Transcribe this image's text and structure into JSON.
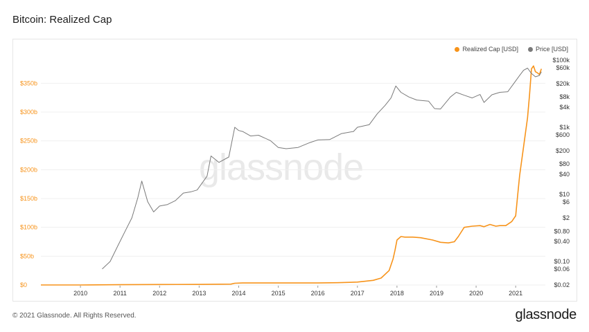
{
  "header": {
    "title": "Bitcoin: Realized Cap"
  },
  "footer": {
    "copyright": "© 2021 Glassnode. All Rights Reserved.",
    "brand": "glassnode"
  },
  "watermark": "glassnode",
  "colors": {
    "realized": "#f7931a",
    "price": "#7a7a7a",
    "left_axis": "#f7931a",
    "grid": "#efefef"
  },
  "chart_data": {
    "type": "line",
    "title": "Bitcoin: Realized Cap",
    "legend": [
      "Realized Cap [USD]",
      "Price [USD]"
    ],
    "legend_position": "top-right",
    "grid": true,
    "x_ticks": [
      "2010",
      "2011",
      "2012",
      "2013",
      "2014",
      "2015",
      "2016",
      "2017",
      "2018",
      "2019",
      "2020",
      "2021"
    ],
    "xlim": [
      2009.0,
      2021.75
    ],
    "y_left": {
      "label": "",
      "ticks": [
        "$0",
        "$50b",
        "$100b",
        "$150b",
        "$200b",
        "$250b",
        "$300b",
        "$350b"
      ],
      "tick_values": [
        0,
        50,
        100,
        150,
        200,
        250,
        300,
        350
      ],
      "unit": "billion USD",
      "ylim": [
        0,
        390
      ]
    },
    "y_right": {
      "label": "",
      "scale": "log",
      "ticks": [
        "$100k",
        "$60k",
        "$20k",
        "$8k",
        "$4k",
        "$1k",
        "$600",
        "$200",
        "$80",
        "$40",
        "$10",
        "$6",
        "$2",
        "$0.80",
        "$0.40",
        "$0.10",
        "$0.06",
        "$0.02"
      ],
      "tick_values": [
        100000,
        60000,
        20000,
        8000,
        4000,
        1000,
        600,
        200,
        80,
        40,
        10,
        6,
        2,
        0.8,
        0.4,
        0.1,
        0.06,
        0.02
      ],
      "ylim": [
        0.02,
        100000
      ]
    },
    "series": [
      {
        "name": "Realized Cap [USD]",
        "axis": "left",
        "x": [
          2009.0,
          2010.0,
          2011.0,
          2012.0,
          2013.0,
          2013.8,
          2013.9,
          2014.1,
          2015.0,
          2016.0,
          2016.5,
          2017.0,
          2017.4,
          2017.6,
          2017.8,
          2017.9,
          2017.95,
          2018.0,
          2018.1,
          2018.2,
          2018.4,
          2018.6,
          2018.9,
          2019.1,
          2019.3,
          2019.45,
          2019.55,
          2019.7,
          2019.9,
          2020.1,
          2020.2,
          2020.35,
          2020.5,
          2020.6,
          2020.75,
          2020.9,
          2021.0,
          2021.05,
          2021.1,
          2021.2,
          2021.3,
          2021.35,
          2021.4,
          2021.45,
          2021.5,
          2021.55,
          2021.6,
          2021.65
        ],
        "values": [
          0,
          0.05,
          0.5,
          0.8,
          1.0,
          1.5,
          3,
          3.5,
          3.5,
          3.5,
          4,
          5,
          8,
          12,
          25,
          45,
          60,
          78,
          84,
          83,
          83,
          82,
          78,
          74,
          73,
          75,
          84,
          100,
          102,
          103,
          101,
          105,
          102,
          103,
          103,
          110,
          120,
          155,
          190,
          240,
          290,
          330,
          375,
          380,
          370,
          368,
          365,
          375
        ]
      },
      {
        "name": "Price [USD]",
        "axis": "right",
        "x": [
          2010.55,
          2010.75,
          2010.95,
          2011.15,
          2011.3,
          2011.45,
          2011.55,
          2011.7,
          2011.85,
          2012.0,
          2012.2,
          2012.4,
          2012.6,
          2012.8,
          2012.95,
          2013.2,
          2013.3,
          2013.5,
          2013.75,
          2013.9,
          2014.0,
          2014.1,
          2014.3,
          2014.5,
          2014.8,
          2015.0,
          2015.2,
          2015.5,
          2015.8,
          2016.0,
          2016.3,
          2016.6,
          2016.9,
          2017.0,
          2017.3,
          2017.5,
          2017.7,
          2017.85,
          2017.97,
          2018.1,
          2018.3,
          2018.5,
          2018.8,
          2018.95,
          2019.1,
          2019.35,
          2019.5,
          2019.7,
          2019.9,
          2020.1,
          2020.2,
          2020.4,
          2020.6,
          2020.8,
          2020.95,
          2021.1,
          2021.2,
          2021.3,
          2021.4,
          2021.5,
          2021.6,
          2021.65
        ],
        "values": [
          0.06,
          0.1,
          0.3,
          0.9,
          2,
          8,
          25,
          6,
          3,
          4.5,
          5,
          6.5,
          11,
          12,
          13.5,
          35,
          140,
          90,
          130,
          1000,
          800,
          750,
          550,
          580,
          400,
          250,
          230,
          250,
          350,
          420,
          430,
          650,
          750,
          1000,
          1200,
          2500,
          4500,
          7500,
          17000,
          11000,
          8000,
          6500,
          6000,
          3600,
          3500,
          8000,
          11000,
          9000,
          7500,
          9500,
          5500,
          9300,
          11000,
          11500,
          20000,
          35000,
          50000,
          58000,
          40000,
          32000,
          35000,
          45000
        ]
      }
    ]
  }
}
